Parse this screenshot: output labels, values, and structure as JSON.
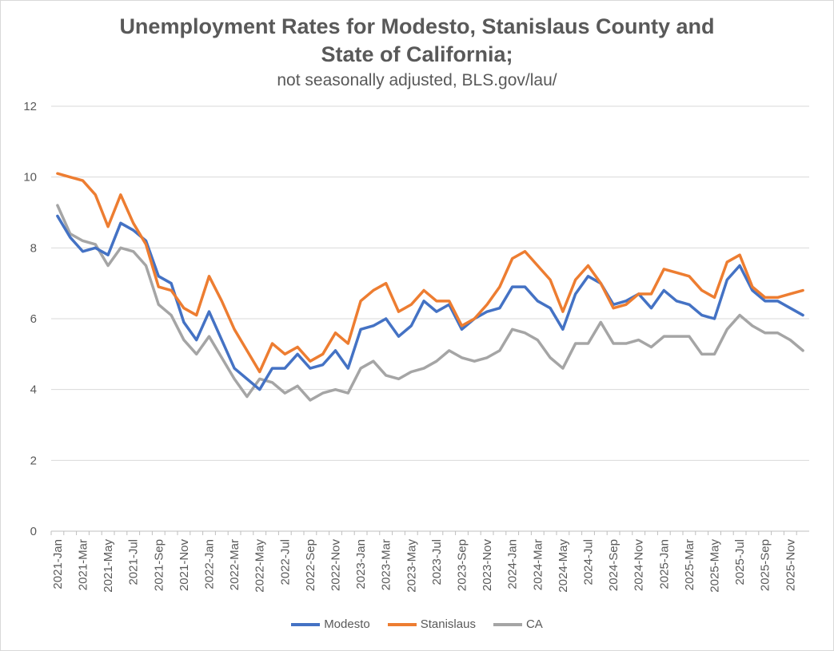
{
  "chart_data": {
    "type": "line",
    "title_line1": "Unemployment Rates for Modesto, Stanislaus County and",
    "title_line2": "State of California;",
    "subtitle": "not seasonally adjusted,  BLS.gov/lau/",
    "xlabel": "",
    "ylabel": "",
    "ylim": [
      0,
      12
    ],
    "yticks": [
      "0",
      "2",
      "4",
      "6",
      "8",
      "10",
      "12"
    ],
    "grid": "horizontal",
    "legend_position": "bottom",
    "x_tick_labels": [
      "2021-Jan",
      "2021-Mar",
      "2021-May",
      "2021-Jul",
      "2021-Sep",
      "2021-Nov",
      "2022-Jan",
      "2022-Mar",
      "2022-May",
      "2022-Jul",
      "2022-Sep",
      "2022-Nov",
      "2023-Jan",
      "2023-Mar",
      "2023-May",
      "2023-Jul",
      "2023-Sep",
      "2023-Nov",
      "2024-Jan",
      "2024-Mar",
      "2024-May",
      "2024-Jul",
      "2024-Sep",
      "2024-Nov",
      "2025-Jan",
      "2025-Mar",
      "2025-May",
      "2025-Jul",
      "2025-Sep",
      "2025-Nov"
    ],
    "num_points": 60,
    "series": [
      {
        "name": "Modesto",
        "color": "#4472c4",
        "values": [
          8.9,
          8.3,
          7.9,
          8.0,
          7.8,
          8.7,
          8.5,
          8.2,
          7.2,
          7.0,
          5.9,
          5.4,
          6.2,
          5.4,
          4.6,
          4.3,
          4.0,
          4.6,
          4.6,
          5.0,
          4.6,
          4.7,
          5.1,
          4.6,
          5.7,
          5.8,
          6.0,
          5.5,
          5.8,
          6.5,
          6.2,
          6.4,
          5.7,
          6.0,
          6.2,
          6.3,
          6.9,
          6.9,
          6.5,
          6.3,
          5.7,
          6.7,
          7.2,
          7.0,
          6.4,
          6.5,
          6.7,
          6.3,
          6.8,
          6.5,
          6.4,
          6.1,
          6.0,
          7.1,
          7.5,
          6.8,
          6.5,
          6.5,
          6.3,
          6.1
        ]
      },
      {
        "name": "Stanislaus",
        "color": "#ed7d31",
        "values": [
          10.1,
          10.0,
          9.9,
          9.5,
          8.6,
          9.5,
          8.7,
          8.1,
          6.9,
          6.8,
          6.3,
          6.1,
          7.2,
          6.5,
          5.7,
          5.1,
          4.5,
          5.3,
          5.0,
          5.2,
          4.8,
          5.0,
          5.6,
          5.3,
          6.5,
          6.8,
          7.0,
          6.2,
          6.4,
          6.8,
          6.5,
          6.5,
          5.8,
          6.0,
          6.4,
          6.9,
          7.7,
          7.9,
          7.5,
          7.1,
          6.2,
          7.1,
          7.5,
          7.0,
          6.3,
          6.4,
          6.7,
          6.7,
          7.4,
          7.3,
          7.2,
          6.8,
          6.6,
          7.6,
          7.8,
          6.9,
          6.6,
          6.6,
          6.7,
          6.8
        ]
      },
      {
        "name": "CA",
        "color": "#a5a5a5",
        "values": [
          9.2,
          8.4,
          8.2,
          8.1,
          7.5,
          8.0,
          7.9,
          7.5,
          6.4,
          6.1,
          5.4,
          5.0,
          5.5,
          4.9,
          4.3,
          3.8,
          4.3,
          4.2,
          3.9,
          4.1,
          3.7,
          3.9,
          4.0,
          3.9,
          4.6,
          4.8,
          4.4,
          4.3,
          4.5,
          4.6,
          4.8,
          5.1,
          4.9,
          4.8,
          4.9,
          5.1,
          5.7,
          5.6,
          5.4,
          4.9,
          4.6,
          5.3,
          5.3,
          5.9,
          5.3,
          5.3,
          5.4,
          5.2,
          5.5,
          5.5,
          5.5,
          5.0,
          5.0,
          5.7,
          6.1,
          5.8,
          5.6,
          5.6,
          5.4,
          5.1
        ]
      }
    ]
  }
}
